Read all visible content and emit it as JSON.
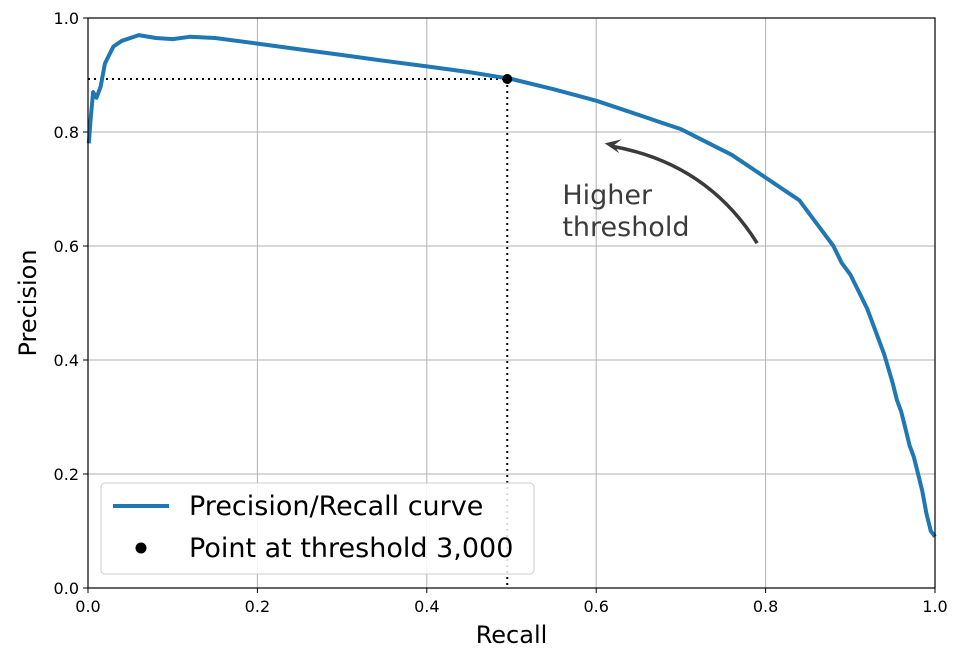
{
  "chart_data": {
    "type": "line",
    "title": "",
    "xlabel": "Recall",
    "ylabel": "Precision",
    "xlim": [
      0,
      1
    ],
    "ylim": [
      0,
      1
    ],
    "grid": true,
    "legend_position": "bottom-left",
    "x_ticks": [
      0.0,
      0.2,
      0.4,
      0.6,
      0.8,
      1.0
    ],
    "x_tick_labels": [
      "0.0",
      "0.2",
      "0.4",
      "0.6",
      "0.8",
      "1.0"
    ],
    "y_ticks": [
      0.0,
      0.2,
      0.4,
      0.6,
      0.8,
      1.0
    ],
    "y_tick_labels": [
      "0.0",
      "0.2",
      "0.4",
      "0.6",
      "0.8",
      "1.0"
    ],
    "series": [
      {
        "name": "Precision/Recall curve",
        "color": "#1f77b4",
        "x": [
          1.0,
          0.995,
          0.99,
          0.985,
          0.98,
          0.975,
          0.97,
          0.965,
          0.96,
          0.955,
          0.95,
          0.94,
          0.93,
          0.92,
          0.91,
          0.9,
          0.89,
          0.88,
          0.87,
          0.86,
          0.85,
          0.84,
          0.83,
          0.82,
          0.81,
          0.8,
          0.79,
          0.78,
          0.76,
          0.74,
          0.72,
          0.7,
          0.68,
          0.65,
          0.6,
          0.55,
          0.5,
          0.45,
          0.4,
          0.35,
          0.3,
          0.25,
          0.2,
          0.15,
          0.12,
          0.1,
          0.08,
          0.06,
          0.04,
          0.03,
          0.02,
          0.015,
          0.01,
          0.006,
          0.003,
          0.001
        ],
        "y": [
          0.09,
          0.1,
          0.13,
          0.17,
          0.2,
          0.23,
          0.25,
          0.28,
          0.31,
          0.33,
          0.36,
          0.41,
          0.45,
          0.49,
          0.52,
          0.55,
          0.57,
          0.6,
          0.62,
          0.64,
          0.66,
          0.68,
          0.69,
          0.7,
          0.71,
          0.72,
          0.73,
          0.74,
          0.76,
          0.775,
          0.79,
          0.805,
          0.815,
          0.83,
          0.855,
          0.875,
          0.893,
          0.905,
          0.915,
          0.925,
          0.935,
          0.945,
          0.955,
          0.965,
          0.967,
          0.963,
          0.965,
          0.97,
          0.96,
          0.95,
          0.92,
          0.88,
          0.86,
          0.87,
          0.82,
          0.78
        ]
      }
    ],
    "highlight_point": {
      "name": "Point at threshold 3,000",
      "x": 0.495,
      "y": 0.893,
      "color": "#000000"
    },
    "annotation": {
      "lines": [
        "Higher",
        "threshold"
      ],
      "arrow_from": [
        0.79,
        0.605
      ],
      "arrow_to": [
        0.61,
        0.78
      ],
      "text_position": [
        0.56,
        0.635
      ],
      "color": "#3b3b3b"
    },
    "grid_color": "#b0b0b0"
  }
}
